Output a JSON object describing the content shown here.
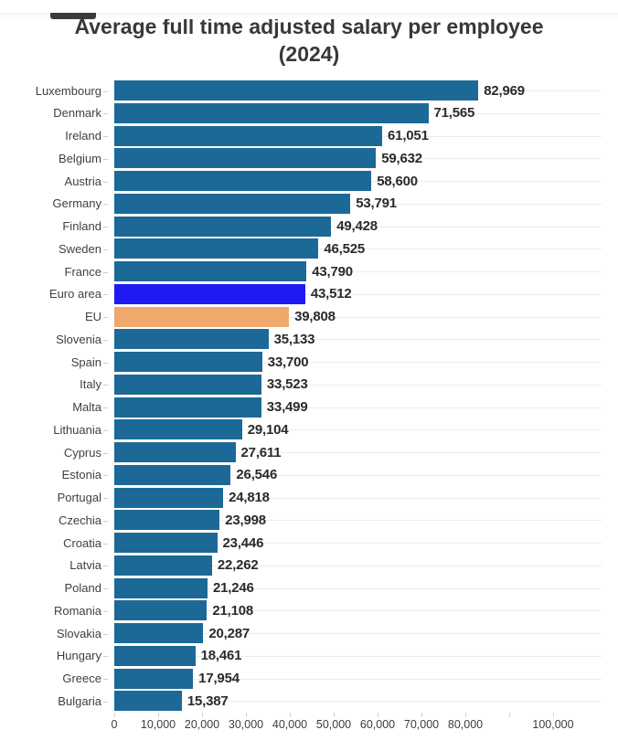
{
  "header": {
    "title": "Average full time adjusted salary per employee (2024)"
  },
  "chart_data": {
    "type": "bar",
    "orientation": "horizontal",
    "title": "Average full time adjusted salary per employee (2024)",
    "xlabel": "",
    "ylabel": "",
    "xlim": [
      0,
      100000
    ],
    "legend": "none",
    "grid": "light horizontal line per row; tick marks below axis",
    "default_bar_color": "#1c6997",
    "highlight_colors": {
      "euro_area": "#1f1af3",
      "eu": "#efa96c"
    },
    "rows": [
      {
        "label": "Luxembourg",
        "value": 82969,
        "display": "82,969"
      },
      {
        "label": "Denmark",
        "value": 71565,
        "display": "71,565"
      },
      {
        "label": "Ireland",
        "value": 61051,
        "display": "61,051"
      },
      {
        "label": "Belgium",
        "value": 59632,
        "display": "59,632"
      },
      {
        "label": "Austria",
        "value": 58600,
        "display": "58,600"
      },
      {
        "label": "Germany",
        "value": 53791,
        "display": "53,791"
      },
      {
        "label": "Finland",
        "value": 49428,
        "display": "49,428"
      },
      {
        "label": "Sweden",
        "value": 46525,
        "display": "46,525"
      },
      {
        "label": "France",
        "value": 43790,
        "display": "43,790"
      },
      {
        "label": "Euro area",
        "value": 43512,
        "display": "43,512",
        "color": "#1f1af3"
      },
      {
        "label": "EU",
        "value": 39808,
        "display": "39,808",
        "color": "#efa96c"
      },
      {
        "label": "Slovenia",
        "value": 35133,
        "display": "35,133"
      },
      {
        "label": "Spain",
        "value": 33700,
        "display": "33,700"
      },
      {
        "label": "Italy",
        "value": 33523,
        "display": "33,523"
      },
      {
        "label": "Malta",
        "value": 33499,
        "display": "33,499"
      },
      {
        "label": "Lithuania",
        "value": 29104,
        "display": "29,104"
      },
      {
        "label": "Cyprus",
        "value": 27611,
        "display": "27,611"
      },
      {
        "label": "Estonia",
        "value": 26546,
        "display": "26,546"
      },
      {
        "label": "Portugal",
        "value": 24818,
        "display": "24,818"
      },
      {
        "label": "Czechia",
        "value": 23998,
        "display": "23,998"
      },
      {
        "label": "Croatia",
        "value": 23446,
        "display": "23,446"
      },
      {
        "label": "Latvia",
        "value": 22262,
        "display": "22,262"
      },
      {
        "label": "Poland",
        "value": 21246,
        "display": "21,246"
      },
      {
        "label": "Romania",
        "value": 21108,
        "display": "21,108"
      },
      {
        "label": "Slovakia",
        "value": 20287,
        "display": "20,287"
      },
      {
        "label": "Hungary",
        "value": 18461,
        "display": "18,461"
      },
      {
        "label": "Greece",
        "value": 17954,
        "display": "17,954"
      },
      {
        "label": "Bulgaria",
        "value": 15387,
        "display": "15,387"
      }
    ],
    "x_ticks": [
      {
        "value": 0,
        "label": "0"
      },
      {
        "value": 10000,
        "label": "10,000"
      },
      {
        "value": 20000,
        "label": "20,000"
      },
      {
        "value": 30000,
        "label": "30,000"
      },
      {
        "value": 40000,
        "label": "40,000"
      },
      {
        "value": 50000,
        "label": "50,000"
      },
      {
        "value": 60000,
        "label": "60,000"
      },
      {
        "value": 70000,
        "label": "70,000"
      },
      {
        "value": 80000,
        "label": "80,000"
      },
      {
        "value": 90000,
        "label": ""
      },
      {
        "value": 100000,
        "label": "100,000"
      }
    ]
  }
}
